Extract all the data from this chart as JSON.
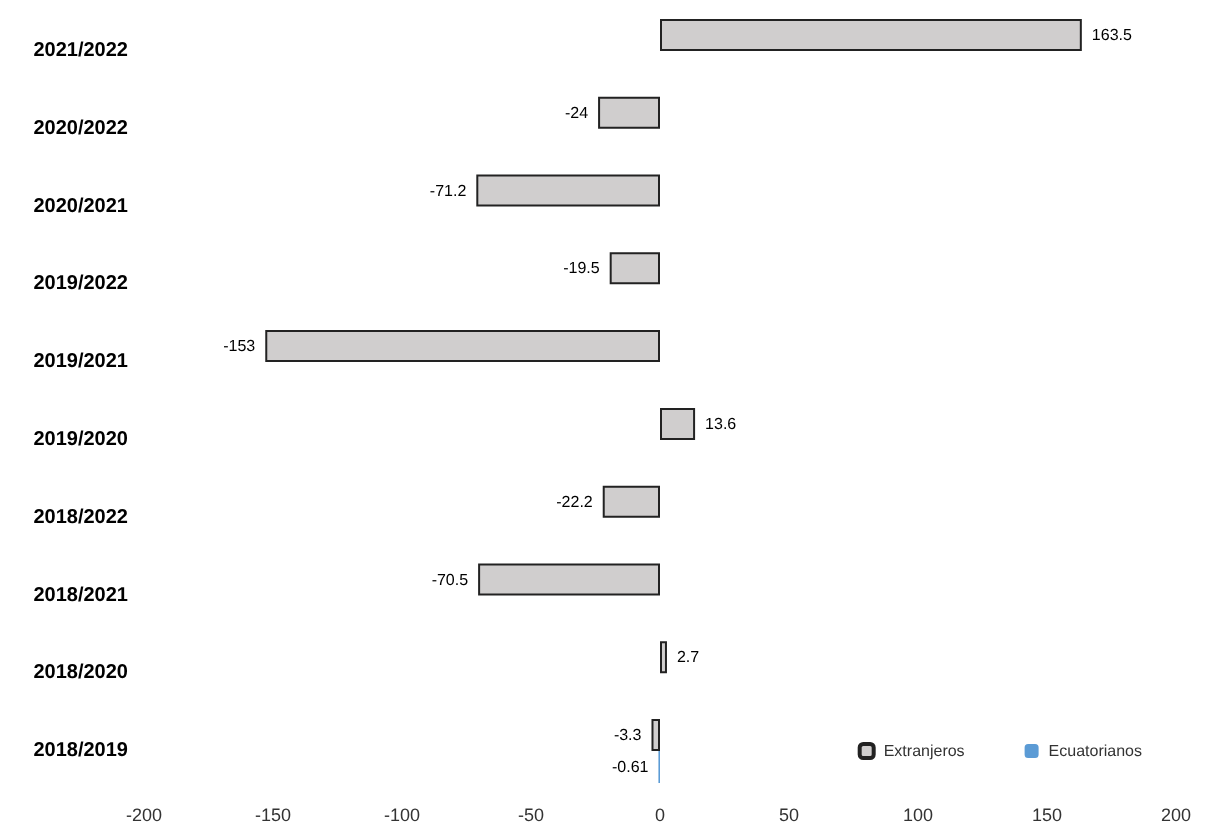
{
  "chart_data": {
    "type": "bar",
    "orientation": "horizontal",
    "categories": [
      "2021/2022",
      "2020/2022",
      "2020/2021",
      "2019/2022",
      "2019/2021",
      "2019/2020",
      "2018/2022",
      "2018/2021",
      "2018/2020",
      "2018/2019"
    ],
    "series": [
      {
        "name": "Extranjeros",
        "color": "#d0cece",
        "values": [
          163.5,
          -24,
          -71.2,
          -19.5,
          -153,
          13.6,
          -22.2,
          -70.5,
          2.7,
          -3.3
        ]
      },
      {
        "name": "Ecuatorianos",
        "color": "#5b9bd5",
        "values": [
          null,
          null,
          null,
          null,
          null,
          null,
          null,
          null,
          null,
          -0.61
        ]
      }
    ],
    "xlim": [
      -200,
      200
    ],
    "xticks": [
      -200,
      -150,
      -100,
      -50,
      0,
      50,
      100,
      150,
      200
    ],
    "data_labels": true,
    "grid": false,
    "legend": "bottom right"
  }
}
